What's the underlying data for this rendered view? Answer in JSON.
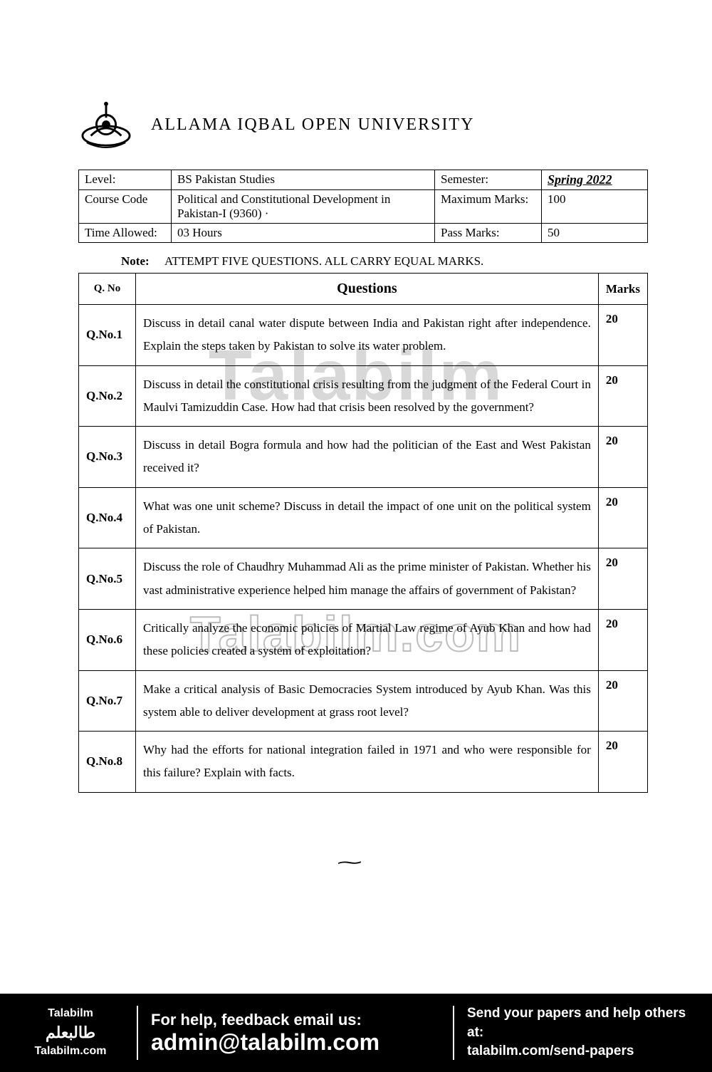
{
  "header": {
    "university": "ALLAMA IQBAL OPEN UNIVERSITY"
  },
  "info": {
    "level_label": "Level:",
    "level_value": "BS Pakistan Studies",
    "semester_label": "Semester:",
    "semester_value": "Spring 2022",
    "course_code_label": "Course Code",
    "course_code_value": "Political and Constitutional Development in Pakistan-I (9360) ·",
    "max_marks_label": "Maximum Marks:",
    "max_marks_value": "100",
    "time_label": "Time Allowed:",
    "time_value": "03 Hours",
    "pass_marks_label": "Pass Marks:",
    "pass_marks_value": "50"
  },
  "note": {
    "label": "Note:",
    "text": "ATTEMPT FIVE QUESTIONS. ALL CARRY EQUAL MARKS."
  },
  "columns": {
    "qno": "Q. No",
    "question": "Questions",
    "marks": "Marks"
  },
  "questions": [
    {
      "no": "Q.No.1",
      "text": "Discuss in detail canal water dispute between India and Pakistan right after independence. Explain the steps taken by Pakistan to solve its water problem.",
      "marks": "20"
    },
    {
      "no": "Q.No.2",
      "text": "Discuss in detail the constitutional crisis resulting from the judgment of the Federal Court in Maulvi Tamizuddin Case. How had that crisis been resolved by the government?",
      "marks": "20"
    },
    {
      "no": "Q.No.3",
      "text": "Discuss in detail Bogra formula and how had the politician of the East and West Pakistan received it?",
      "marks": "20"
    },
    {
      "no": "Q.No.4",
      "text": "What was one unit scheme? Discuss in detail the impact of one unit on the political system of Pakistan.",
      "marks": "20"
    },
    {
      "no": "Q.No.5",
      "text": "Discuss the role of Chaudhry Muhammad Ali as the prime minister of Pakistan. Whether his vast administrative experience helped him manage the affairs of government of Pakistan?",
      "marks": "20"
    },
    {
      "no": "Q.No.6",
      "text": "Critically analyze the economic policies of Martial Law regime of Ayub Khan and how had these policies created a system of exploitation?",
      "marks": "20"
    },
    {
      "no": "Q.No.7",
      "text": "Make a critical analysis of Basic Democracies System introduced by Ayub Khan. Was this system able to deliver development at grass root level?",
      "marks": "20"
    },
    {
      "no": "Q.No.8",
      "text": "Why had the efforts for national integration failed in 1971 and who were responsible for this failure? Explain with facts.",
      "marks": "20"
    }
  ],
  "watermark": {
    "top": "Talabilm",
    "mid_outline": "Talabilm.com"
  },
  "footer": {
    "brand": "Talabilm",
    "brand_ar": "طالبعلم",
    "brand_url": "Talabilm.com",
    "help_l1": "For help, feedback email us:",
    "help_l2": "admin@talabilm.com",
    "send_l1": "Send your papers and help others at:",
    "send_l2": "talabilm.com/send-papers"
  }
}
